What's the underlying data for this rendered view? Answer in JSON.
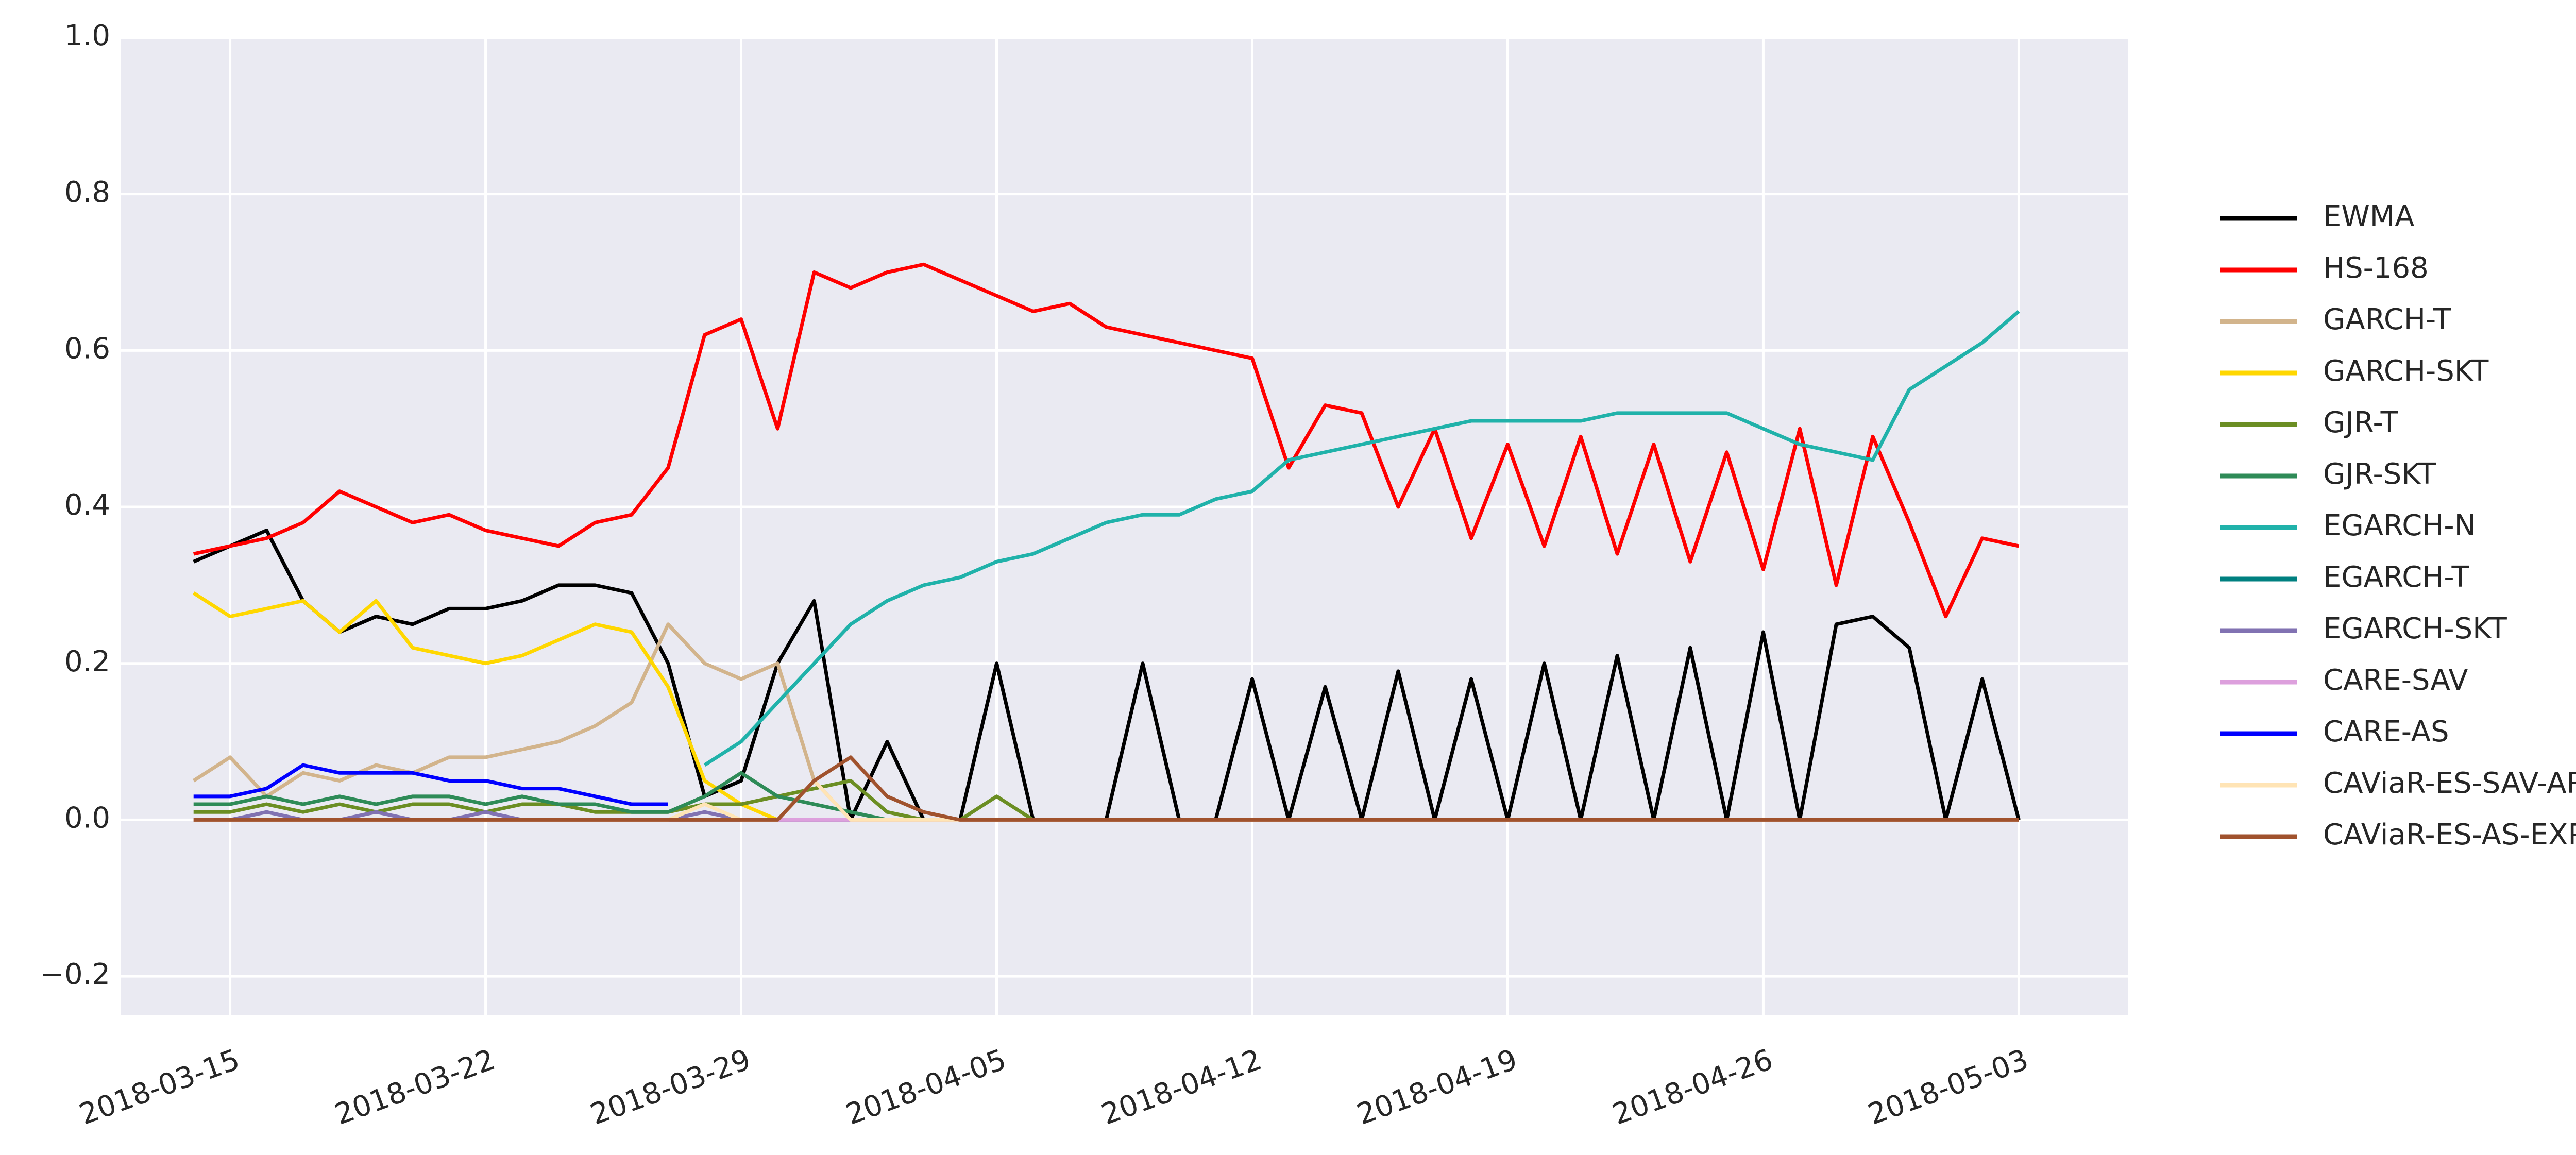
{
  "chart_data": {
    "type": "line",
    "x": [
      "2018-03-14",
      "2018-03-15",
      "2018-03-16",
      "2018-03-17",
      "2018-03-18",
      "2018-03-19",
      "2018-03-20",
      "2018-03-21",
      "2018-03-22",
      "2018-03-23",
      "2018-03-24",
      "2018-03-25",
      "2018-03-26",
      "2018-03-27",
      "2018-03-28",
      "2018-03-29",
      "2018-03-30",
      "2018-03-31",
      "2018-04-01",
      "2018-04-02",
      "2018-04-03",
      "2018-04-04",
      "2018-04-05",
      "2018-04-06",
      "2018-04-07",
      "2018-04-08",
      "2018-04-09",
      "2018-04-10",
      "2018-04-11",
      "2018-04-12",
      "2018-04-13",
      "2018-04-14",
      "2018-04-15",
      "2018-04-16",
      "2018-04-17",
      "2018-04-18",
      "2018-04-19",
      "2018-04-20",
      "2018-04-21",
      "2018-04-22",
      "2018-04-23",
      "2018-04-24",
      "2018-04-25",
      "2018-04-26",
      "2018-04-27",
      "2018-04-28",
      "2018-04-29",
      "2018-04-30",
      "2018-05-01",
      "2018-05-02",
      "2018-05-03"
    ],
    "xlim": [
      "2018-03-12",
      "2018-05-06"
    ],
    "xticks": [
      "2018-03-15",
      "2018-03-22",
      "2018-03-29",
      "2018-04-05",
      "2018-04-12",
      "2018-04-19",
      "2018-04-26",
      "2018-05-03"
    ],
    "ylim": [
      -0.25,
      1.0
    ],
    "yticks": [
      {
        "value": -0.2,
        "label": "−0.2"
      },
      {
        "value": 0,
        "label": "0.0"
      },
      0.2,
      0.4,
      0.6,
      0.8,
      {
        "value": 1.0,
        "label": "1.0"
      }
    ],
    "grid": true,
    "legend": "right",
    "series": [
      {
        "name": "EWMA",
        "color": "#000000",
        "values": [
          0.33,
          0.35,
          0.37,
          0.28,
          0.24,
          0.26,
          0.25,
          0.27,
          0.27,
          0.28,
          0.3,
          0.3,
          0.29,
          0.2,
          0.03,
          0.05,
          0.2,
          0.28,
          0,
          0.1,
          0,
          0,
          0.2,
          0,
          0,
          0,
          0.2,
          0,
          0,
          0.18,
          0,
          0.17,
          0,
          0.19,
          0,
          0.18,
          0,
          0.2,
          0,
          0.21,
          0,
          0.22,
          0,
          0.24,
          0,
          0.25,
          0.26,
          0.22,
          0,
          0.18,
          0
        ]
      },
      {
        "name": "HS-168",
        "color": "#ff0000",
        "values": [
          0.34,
          0.35,
          0.36,
          0.38,
          0.42,
          0.4,
          0.38,
          0.39,
          0.37,
          0.36,
          0.35,
          0.38,
          0.39,
          0.45,
          0.62,
          0.64,
          0.5,
          0.7,
          0.68,
          0.7,
          0.71,
          0.69,
          0.67,
          0.65,
          0.66,
          0.63,
          0.62,
          0.61,
          0.6,
          0.59,
          0.45,
          0.53,
          0.52,
          0.4,
          0.5,
          0.36,
          0.48,
          0.35,
          0.49,
          0.34,
          0.48,
          0.33,
          0.47,
          0.32,
          0.5,
          0.3,
          0.49,
          0.38,
          0.26,
          0.36,
          0.35
        ]
      },
      {
        "name": "GARCH-T",
        "color": "#d2b48c",
        "values": [
          0.05,
          0.08,
          0.03,
          0.06,
          0.05,
          0.07,
          0.06,
          0.08,
          0.08,
          0.09,
          0.1,
          0.12,
          0.15,
          0.25,
          0.2,
          0.18,
          0.2,
          0.05,
          0,
          0,
          0,
          0,
          0,
          0,
          0,
          0,
          0,
          0,
          0,
          0,
          0,
          0,
          0,
          0,
          0,
          0,
          0,
          0,
          0,
          0,
          0,
          0,
          0,
          0,
          0,
          0,
          0,
          0,
          0,
          0,
          0
        ]
      },
      {
        "name": "GARCH-SKT",
        "color": "#ffd700",
        "values": [
          0.29,
          0.26,
          0.27,
          0.28,
          0.24,
          0.28,
          0.22,
          0.21,
          0.2,
          0.21,
          0.23,
          0.25,
          0.24,
          0.17,
          0.05,
          0.02,
          0,
          0,
          0,
          0,
          0,
          0,
          0,
          0,
          0,
          0,
          0,
          0,
          0,
          0,
          0,
          0,
          0,
          0,
          0,
          0,
          0,
          0,
          0,
          0,
          0,
          0,
          0,
          0,
          0,
          0,
          0,
          0,
          0,
          0,
          0
        ]
      },
      {
        "name": "GJR-T",
        "color": "#6b8e23",
        "values": [
          0.01,
          0.01,
          0.02,
          0.01,
          0.02,
          0.01,
          0.02,
          0.02,
          0.01,
          0.02,
          0.02,
          0.01,
          0.01,
          0.01,
          0.02,
          0.02,
          0.03,
          0.04,
          0.05,
          0.01,
          0,
          0,
          0.03,
          0,
          0,
          0,
          0,
          0,
          0,
          0,
          0,
          0,
          0,
          0,
          0,
          0,
          0,
          0,
          0,
          0,
          0,
          0,
          0,
          0,
          0,
          0,
          0,
          0,
          0,
          0,
          0
        ]
      },
      {
        "name": "GJR-SKT",
        "color": "#2e8b57",
        "values": [
          0.02,
          0.02,
          0.03,
          0.02,
          0.03,
          0.02,
          0.03,
          0.03,
          0.02,
          0.03,
          0.02,
          0.02,
          0.01,
          0.01,
          0.03,
          0.06,
          0.03,
          0.02,
          0.01,
          0,
          0,
          0,
          0,
          0,
          0,
          0,
          0,
          0,
          0,
          0,
          0,
          0,
          0,
          0,
          0,
          0,
          0,
          0,
          0,
          0,
          0,
          0,
          0,
          0,
          0,
          0,
          0,
          0,
          0,
          0,
          0
        ]
      },
      {
        "name": "EGARCH-N",
        "color": "#20b2aa",
        "values": [
          null,
          null,
          null,
          null,
          null,
          null,
          null,
          null,
          null,
          null,
          null,
          null,
          null,
          null,
          0.07,
          0.1,
          0.15,
          0.2,
          0.25,
          0.28,
          0.3,
          0.31,
          0.33,
          0.34,
          0.36,
          0.38,
          0.39,
          0.39,
          0.41,
          0.42,
          0.46,
          0.47,
          0.48,
          0.49,
          0.5,
          0.51,
          0.51,
          0.51,
          0.51,
          0.52,
          0.52,
          0.52,
          0.52,
          0.5,
          0.48,
          0.47,
          0.46,
          0.55,
          0.58,
          0.61,
          0.65
        ]
      },
      {
        "name": "EGARCH-T",
        "color": "#008080",
        "values": [
          0,
          0,
          0,
          0,
          0,
          0,
          0,
          0,
          0,
          0,
          0,
          0,
          0,
          0,
          0,
          0,
          0,
          0,
          0,
          0,
          0,
          0,
          0,
          0,
          0,
          0,
          0,
          0,
          0,
          0,
          0,
          0,
          0,
          0,
          0,
          0,
          0,
          0,
          0,
          0,
          0,
          0,
          0,
          0,
          0,
          0,
          0,
          0,
          0,
          0,
          0
        ]
      },
      {
        "name": "EGARCH-SKT",
        "color": "#8172b2",
        "values": [
          0,
          0,
          0.01,
          0,
          0,
          0.01,
          0,
          0,
          0.01,
          0,
          0,
          0,
          0,
          0,
          0.01,
          0,
          0,
          0,
          0,
          0,
          0,
          0,
          0,
          0,
          0,
          0,
          0,
          0,
          0,
          0,
          0,
          0,
          0,
          0,
          0,
          0,
          0,
          0,
          0,
          0,
          0,
          0,
          0,
          0,
          0,
          0,
          0,
          0,
          0,
          0,
          0
        ]
      },
      {
        "name": "CARE-SAV",
        "color": "#dda0dd",
        "values": [
          0,
          0,
          0,
          0,
          0,
          0,
          0,
          0,
          0,
          0,
          0,
          0,
          0,
          0,
          0,
          0,
          0,
          0,
          0,
          0,
          0,
          0,
          0,
          0,
          0,
          0,
          0,
          0,
          0,
          0,
          0,
          0,
          0,
          0,
          0,
          0,
          0,
          0,
          0,
          0,
          0,
          0,
          0,
          0,
          0,
          0,
          0,
          0,
          0,
          0,
          0
        ]
      },
      {
        "name": "CARE-AS",
        "color": "#0000ff",
        "values": [
          0.03,
          0.03,
          0.04,
          0.07,
          0.06,
          0.06,
          0.06,
          0.05,
          0.05,
          0.04,
          0.04,
          0.03,
          0.02,
          0.02,
          null,
          null,
          null,
          null,
          null,
          null,
          null,
          null,
          null,
          null,
          null,
          null,
          null,
          null,
          null,
          null,
          null,
          null,
          null,
          null,
          null,
          null,
          null,
          null,
          null,
          null,
          null,
          null,
          null,
          null,
          null,
          null,
          null,
          null,
          null,
          null,
          null
        ]
      },
      {
        "name": "CAViaR-ES-SAV-AR",
        "color": "#ffe4b5",
        "values": [
          0,
          0,
          0,
          0,
          0,
          0,
          0,
          0,
          0,
          0,
          0,
          0,
          0,
          0,
          0.02,
          0,
          0,
          0.05,
          0,
          0,
          0,
          0,
          0,
          0,
          0,
          0,
          0,
          0,
          0,
          0,
          0,
          0,
          0,
          0,
          0,
          0,
          0,
          0,
          0,
          0,
          0,
          0,
          0,
          0,
          0,
          0,
          0,
          0,
          0,
          0,
          0
        ]
      },
      {
        "name": "CAViaR-ES-AS-EXP",
        "color": "#a0522d",
        "values": [
          0,
          0,
          0,
          0,
          0,
          0,
          0,
          0,
          0,
          0,
          0,
          0,
          0,
          0,
          0,
          0,
          0,
          0.05,
          0.08,
          0.03,
          0.01,
          0,
          0,
          0,
          0,
          0,
          0,
          0,
          0,
          0,
          0,
          0,
          0,
          0,
          0,
          0,
          0,
          0,
          0,
          0,
          0,
          0,
          0,
          0,
          0,
          0,
          0,
          0,
          0,
          0,
          0
        ]
      }
    ]
  }
}
